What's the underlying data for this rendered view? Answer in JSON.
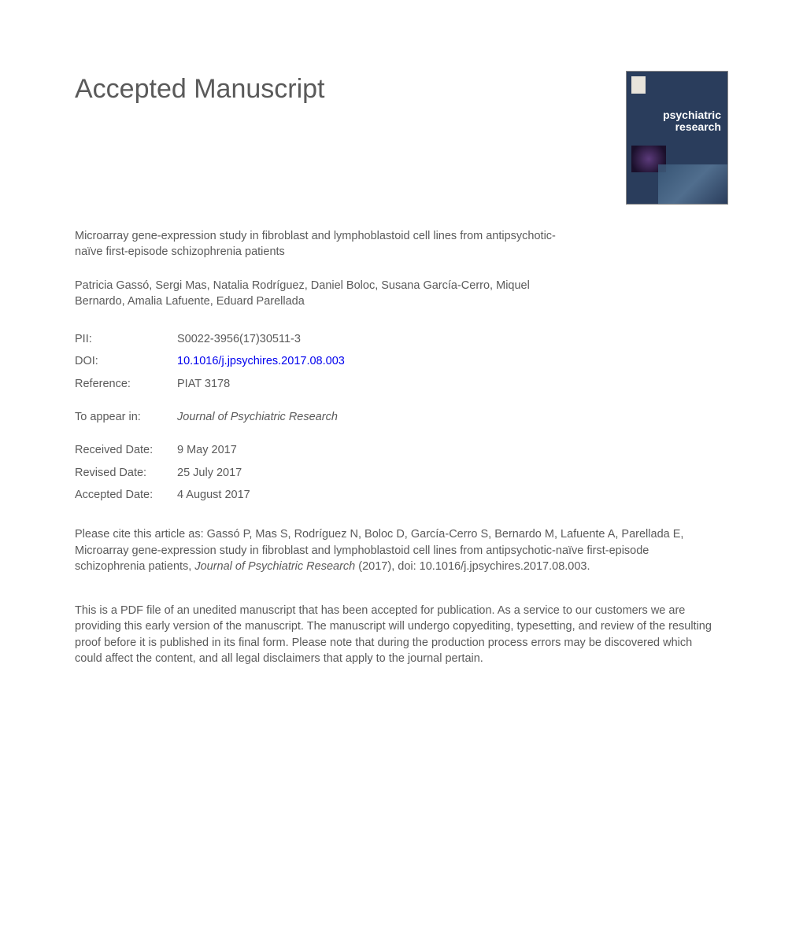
{
  "heading": "Accepted Manuscript",
  "cover": {
    "journal_line1": "psychiatric",
    "journal_line2": "research",
    "bg_color": "#2a3d5c"
  },
  "article_title": "Microarray gene-expression study in fibroblast and lymphoblastoid cell lines from antipsychotic-naïve first-episode schizophrenia patients",
  "authors": "Patricia Gassó, Sergi Mas, Natalia Rodríguez, Daniel Boloc, Susana García-Cerro, Miquel Bernardo, Amalia Lafuente, Eduard Parellada",
  "meta": {
    "pii_label": "PII:",
    "pii_value": "S0022-3956(17)30511-3",
    "doi_label": "DOI:",
    "doi_value": "10.1016/j.jpsychires.2017.08.003",
    "ref_label": "Reference:",
    "ref_value": "PIAT 3178",
    "appear_label": "To appear in:",
    "appear_value": "Journal of Psychiatric Research",
    "received_label": "Received Date:",
    "received_value": "9 May 2017",
    "revised_label": "Revised Date:",
    "revised_value": "25 July 2017",
    "accepted_label": "Accepted Date:",
    "accepted_value": "4 August 2017"
  },
  "citation_prefix": "Please cite this article as: Gassó P, Mas S, Rodríguez N, Boloc D, García-Cerro S, Bernardo M, Lafuente A, Parellada E, Microarray gene-expression study in fibroblast and lymphoblastoid cell lines from antipsychotic-naïve first-episode schizophrenia patients, ",
  "citation_journal": "Journal of Psychiatric Research",
  "citation_suffix": " (2017), doi: 10.1016/j.jpsychires.2017.08.003.",
  "disclaimer": "This is a PDF file of an unedited manuscript that has been accepted for publication. As a service to our customers we are providing this early version of the manuscript. The manuscript will undergo copyediting, typesetting, and review of the resulting proof before it is published in its final form. Please note that during the production process errors may be discovered which could affect the content, and all legal disclaimers that apply to the journal pertain."
}
